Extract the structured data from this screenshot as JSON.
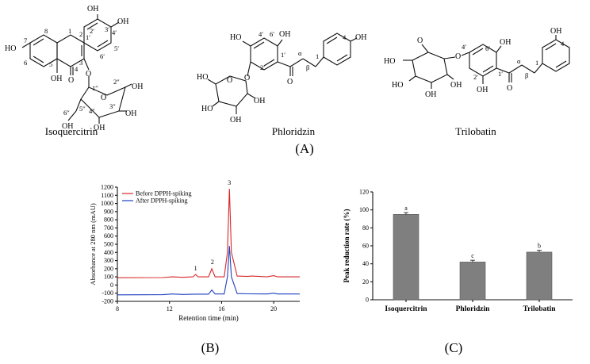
{
  "panel_a": {
    "label": "(A)",
    "compounds": [
      {
        "name": "Isoquercitrin"
      },
      {
        "name": "Phloridzin"
      },
      {
        "name": "Trilobatin"
      }
    ],
    "atoms": {
      "oh": "OH",
      "ho": "HO",
      "o": "O",
      "iso_nums": [
        "2′",
        "3′",
        "4′",
        "5′",
        "6′",
        "1′",
        "8",
        "7",
        "6",
        "5",
        "4",
        "3",
        "2",
        "1",
        "2″",
        "3″",
        "4″",
        "5″",
        "6″",
        "1″"
      ],
      "phl_nums": [
        "4′",
        "6′",
        "1′",
        "2′",
        "α",
        "β",
        "1",
        "4"
      ],
      "tri_nums": [
        "4′",
        "6′",
        "1′",
        "2′",
        "α",
        "β",
        "1",
        "4"
      ]
    }
  },
  "panel_b": {
    "label": "(B)",
    "chart_data": {
      "type": "line",
      "xlabel": "Retention time (min)",
      "ylabel": "Absorbance at 280 nm (mAU)",
      "xlim": [
        8,
        22
      ],
      "ylim": [
        -200,
        1200
      ],
      "xticks": [
        8,
        12,
        16,
        20
      ],
      "yticks": [
        -200,
        -100,
        0,
        100,
        200,
        300,
        400,
        500,
        600,
        700,
        800,
        900,
        1000,
        1100,
        1200
      ],
      "legend_position": "top-left",
      "peak_labels": [
        {
          "text": "1",
          "x": 14.0,
          "y": 150
        },
        {
          "text": "2",
          "x": 15.3,
          "y": 230
        },
        {
          "text": "3",
          "x": 16.6,
          "y": 1200
        }
      ],
      "series": [
        {
          "name": "Before DPPH-spiking",
          "color": "#d62728",
          "x": [
            8.0,
            11.5,
            12.2,
            13.0,
            13.8,
            14.0,
            14.2,
            15.0,
            15.25,
            15.5,
            16.2,
            16.45,
            16.6,
            16.75,
            17.2,
            18.0,
            18.3,
            19.5,
            20.0,
            20.3,
            22.0
          ],
          "y": [
            90,
            92,
            100,
            95,
            100,
            130,
            100,
            100,
            200,
            100,
            100,
            400,
            1180,
            400,
            110,
            105,
            110,
            100,
            115,
            100,
            100
          ]
        },
        {
          "name": "After DPPH-spiking",
          "color": "#1f3fbf",
          "x": [
            8.0,
            11.5,
            12.2,
            13.0,
            14.0,
            15.0,
            15.25,
            15.5,
            16.2,
            16.45,
            16.6,
            16.75,
            17.2,
            18.0,
            19.5,
            20.0,
            20.3,
            22.0
          ],
          "y": [
            -120,
            -118,
            -110,
            -115,
            -112,
            -112,
            -60,
            -110,
            -110,
            100,
            480,
            100,
            -105,
            -108,
            -110,
            -100,
            -110,
            -110
          ]
        }
      ]
    }
  },
  "panel_c": {
    "label": "(C)",
    "chart_data": {
      "type": "bar",
      "categories": [
        "Isoquercitrin",
        "Phloridzin",
        "Trilobatin"
      ],
      "values": [
        95,
        42,
        53
      ],
      "errors": [
        2,
        2,
        2
      ],
      "annotations": [
        "a",
        "c",
        "b"
      ],
      "ylabel": "Peak reduction rate (%)",
      "xlabel": "",
      "ylim": [
        0,
        120
      ],
      "yticks": [
        0,
        20,
        40,
        60,
        80,
        100,
        120
      ],
      "bar_color": "#7f7f7f",
      "grid": false
    }
  }
}
